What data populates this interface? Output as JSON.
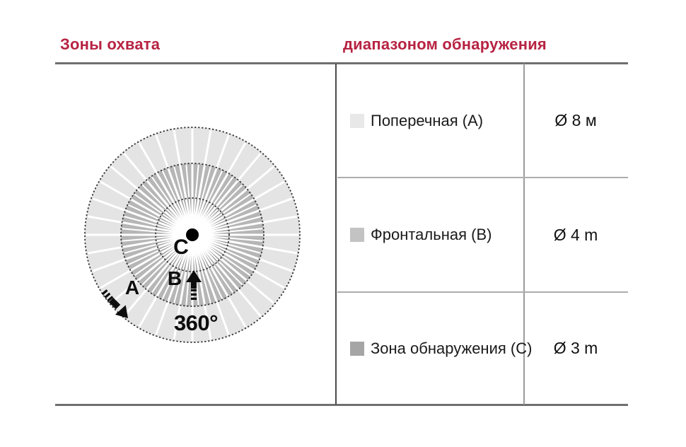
{
  "headers": {
    "left": "Зоны охвата",
    "right": "диапазоном обнаружения",
    "accent_color": "#b72342"
  },
  "diagram": {
    "angle_label": "360°",
    "label_a": "A",
    "label_b": "B",
    "label_c": "C",
    "zone_colors": {
      "outer": "#e4e4e4",
      "middle": "#b6b6b6",
      "inner": "#a2a2a2"
    },
    "center_dot_color": "#000000"
  },
  "table": {
    "rows": [
      {
        "swatch_color": "#e8e8e8",
        "label": "Поперечная (А)",
        "value": "Ø 8 м"
      },
      {
        "swatch_color": "#c3c3c3",
        "label": "Фронтальная (В)",
        "value": "Ø 4 m"
      },
      {
        "swatch_color": "#a5a5a5",
        "label": "Зона обнаружения (С)",
        "value": "Ø 3 m"
      }
    ]
  }
}
